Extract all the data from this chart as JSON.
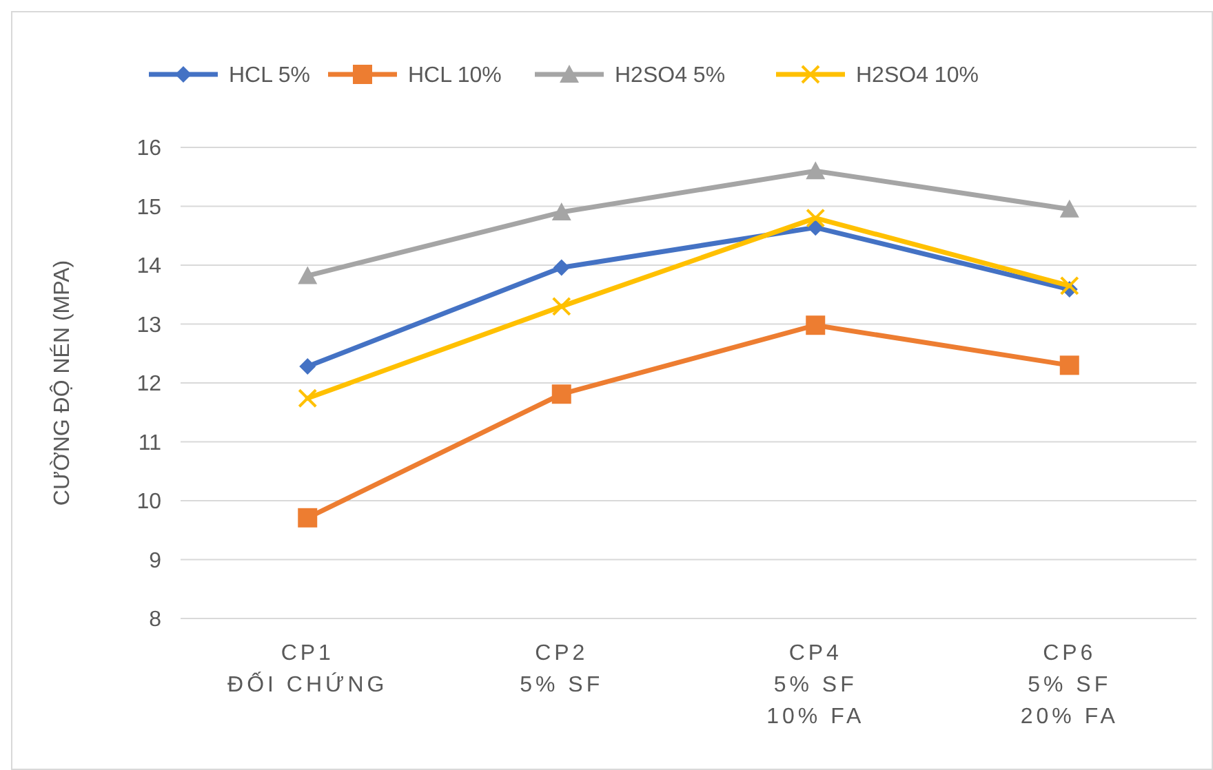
{
  "chart_data": {
    "type": "line",
    "ylabel": "CƯỜNG ĐỘ NÉN (MPA)",
    "categories": [
      "CP1\nĐỐI CHỨNG",
      "CP2\n5% SF",
      "CP4\n5% SF\n10% FA",
      "CP6\n5% SF\n20% FA"
    ],
    "series": [
      {
        "name": "HCL 5%",
        "color": "#4472c4",
        "marker": "diamond",
        "values": [
          12.28,
          13.96,
          14.64,
          13.59
        ]
      },
      {
        "name": "HCL 10%",
        "color": "#ed7d31",
        "marker": "square",
        "values": [
          9.71,
          11.81,
          12.98,
          12.3
        ]
      },
      {
        "name": "H2SO4 5%",
        "color": "#a5a5a5",
        "marker": "triangle",
        "values": [
          13.82,
          14.9,
          15.6,
          14.95
        ]
      },
      {
        "name": "H2SO4 10%",
        "color": "#ffc000",
        "marker": "cross",
        "values": [
          11.74,
          13.3,
          14.8,
          13.65
        ]
      }
    ],
    "ylim": [
      8,
      16
    ],
    "yticks": [
      8,
      9,
      10,
      11,
      12,
      13,
      14,
      15,
      16
    ],
    "grid": "y",
    "legend": "top",
    "line_style": "solid"
  }
}
